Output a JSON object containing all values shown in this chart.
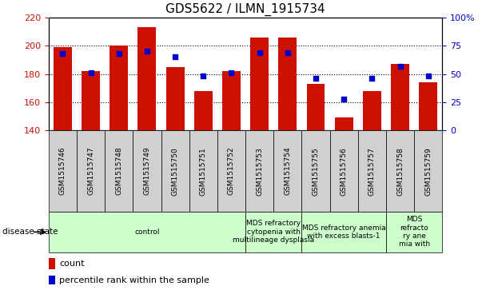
{
  "title": "GDS5622 / ILMN_1915734",
  "samples": [
    "GSM1515746",
    "GSM1515747",
    "GSM1515748",
    "GSM1515749",
    "GSM1515750",
    "GSM1515751",
    "GSM1515752",
    "GSM1515753",
    "GSM1515754",
    "GSM1515755",
    "GSM1515756",
    "GSM1515757",
    "GSM1515758",
    "GSM1515759"
  ],
  "counts": [
    199,
    182,
    200,
    213,
    185,
    168,
    182,
    206,
    206,
    173,
    149,
    168,
    187,
    174
  ],
  "percentiles": [
    68,
    51,
    68,
    70,
    65,
    48,
    51,
    69,
    69,
    46,
    28,
    46,
    57,
    48
  ],
  "ylim_left": [
    140,
    220
  ],
  "ylim_right": [
    0,
    100
  ],
  "yticks_left": [
    140,
    160,
    180,
    200,
    220
  ],
  "yticks_right": [
    0,
    25,
    50,
    75,
    100
  ],
  "bar_color": "#cc1100",
  "dot_color": "#0000cc",
  "sample_box_color": "#d0d0d0",
  "disease_box_color": "#ccffcc",
  "disease_groups": [
    {
      "label": "control",
      "start": 0,
      "end": 7
    },
    {
      "label": "MDS refractory\ncytopenia with\nmultilineage dysplasia",
      "start": 7,
      "end": 9
    },
    {
      "label": "MDS refractory anemia\nwith excess blasts-1",
      "start": 9,
      "end": 12
    },
    {
      "label": "MDS\nrefracto\nry ane\nmia with",
      "start": 12,
      "end": 14
    }
  ],
  "disease_state_label": "disease state",
  "legend_count_label": "count",
  "legend_pct_label": "percentile rank within the sample",
  "fig_width": 6.08,
  "fig_height": 3.63,
  "dpi": 100
}
